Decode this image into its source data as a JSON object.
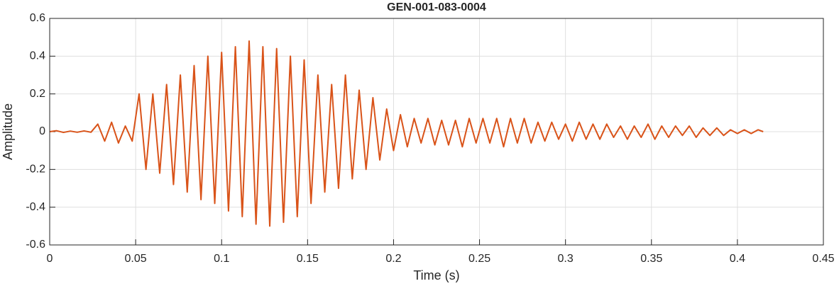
{
  "chart_data": {
    "type": "line",
    "title": "GEN-001-083-0004",
    "x_label": "Time (s)",
    "y_label": "Amplitude",
    "x": [
      0,
      0.004,
      0.008,
      0.012,
      0.016,
      0.02,
      0.024,
      0.028,
      0.032,
      0.036,
      0.04,
      0.044,
      0.048,
      0.052,
      0.056,
      0.06,
      0.064,
      0.068,
      0.072,
      0.076,
      0.08,
      0.084,
      0.088,
      0.092,
      0.096,
      0.1,
      0.104,
      0.108,
      0.112,
      0.116,
      0.12,
      0.124,
      0.128,
      0.132,
      0.136,
      0.14,
      0.144,
      0.148,
      0.152,
      0.156,
      0.16,
      0.164,
      0.168,
      0.172,
      0.176,
      0.18,
      0.184,
      0.188,
      0.192,
      0.196,
      0.2,
      0.204,
      0.208,
      0.212,
      0.216,
      0.22,
      0.224,
      0.228,
      0.232,
      0.236,
      0.24,
      0.244,
      0.248,
      0.252,
      0.256,
      0.26,
      0.264,
      0.268,
      0.272,
      0.276,
      0.28,
      0.284,
      0.288,
      0.292,
      0.296,
      0.3,
      0.304,
      0.308,
      0.312,
      0.316,
      0.32,
      0.324,
      0.328,
      0.332,
      0.336,
      0.34,
      0.344,
      0.348,
      0.352,
      0.356,
      0.36,
      0.364,
      0.368,
      0.372,
      0.376,
      0.38,
      0.384,
      0.388,
      0.392,
      0.396,
      0.4,
      0.404,
      0.408,
      0.412,
      0.415
    ],
    "series": [
      {
        "color": "#d95319",
        "values": [
          0,
          0.005,
          -0.004,
          0.003,
          -0.003,
          0.004,
          -0.003,
          0.04,
          -0.05,
          0.05,
          -0.06,
          0.03,
          -0.05,
          0.2,
          -0.2,
          0.2,
          -0.22,
          0.25,
          -0.28,
          0.3,
          -0.32,
          0.35,
          -0.36,
          0.4,
          -0.38,
          0.42,
          -0.42,
          0.45,
          -0.45,
          0.48,
          -0.49,
          0.45,
          -0.5,
          0.44,
          -0.48,
          0.4,
          -0.45,
          0.38,
          -0.38,
          0.3,
          -0.32,
          0.25,
          -0.3,
          0.3,
          -0.25,
          0.22,
          -0.2,
          0.18,
          -0.15,
          0.12,
          -0.1,
          0.09,
          -0.08,
          0.07,
          -0.06,
          0.07,
          -0.07,
          0.06,
          -0.07,
          0.06,
          -0.08,
          0.07,
          -0.06,
          0.07,
          -0.06,
          0.07,
          -0.08,
          0.07,
          -0.06,
          0.07,
          -0.06,
          0.05,
          -0.05,
          0.05,
          -0.04,
          0.04,
          -0.05,
          0.05,
          -0.04,
          0.04,
          -0.04,
          0.04,
          -0.03,
          0.03,
          -0.04,
          0.03,
          -0.03,
          0.04,
          -0.04,
          0.03,
          -0.03,
          0.03,
          -0.02,
          0.03,
          -0.03,
          0.02,
          -0.02,
          0.02,
          -0.02,
          0.01,
          -0.01,
          0.01,
          -0.01,
          0.01,
          0
        ]
      }
    ],
    "xlim": [
      0,
      0.45
    ],
    "xticks": [
      0,
      0.05,
      0.1,
      0.15,
      0.2,
      0.25,
      0.3,
      0.35,
      0.4,
      0.45
    ],
    "ylim": [
      -0.6,
      0.6
    ],
    "yticks": [
      -0.6,
      -0.4,
      -0.2,
      0,
      0.2,
      0.4,
      0.6
    ],
    "grid": true
  }
}
